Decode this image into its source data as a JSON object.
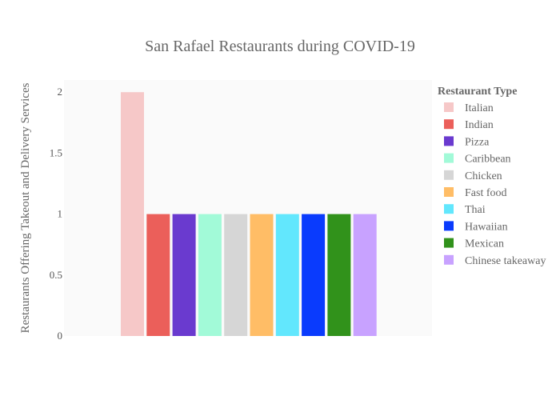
{
  "chart_data": {
    "type": "bar",
    "title": "San Rafael Restaurants during COVID-19",
    "xlabel": "",
    "ylabel": "Restaurants Offering Takeout and Delivery Services",
    "ylim": [
      0,
      2.1
    ],
    "yticks": [
      0,
      0.5,
      1,
      1.5,
      2
    ],
    "ytick_labels": [
      "0",
      "0.5",
      "1",
      "1.5",
      "2"
    ],
    "grid": false,
    "legend": {
      "title": "Restaurant Type",
      "placement": "right"
    },
    "series": [
      {
        "name": "Italian",
        "value": 2,
        "color": "#F6C8C8"
      },
      {
        "name": "Indian",
        "value": 1,
        "color": "#EB5F5A"
      },
      {
        "name": "Pizza",
        "value": 1,
        "color": "#6A3ACF"
      },
      {
        "name": "Caribbean",
        "value": 1,
        "color": "#A2FAD8"
      },
      {
        "name": "Chicken",
        "value": 1,
        "color": "#D6D6D6"
      },
      {
        "name": "Fast food",
        "value": 1,
        "color": "#FFBD66"
      },
      {
        "name": "Thai",
        "value": 1,
        "color": "#62E7FD"
      },
      {
        "name": "Hawaiian",
        "value": 1,
        "color": "#0A3BFD"
      },
      {
        "name": "Mexican",
        "value": 1,
        "color": "#31921B"
      },
      {
        "name": "Chinese takeaway",
        "value": 1,
        "color": "#C8A2FF"
      }
    ],
    "colors": {
      "plot_background": "#FAFAFA",
      "text": "#666666"
    }
  }
}
